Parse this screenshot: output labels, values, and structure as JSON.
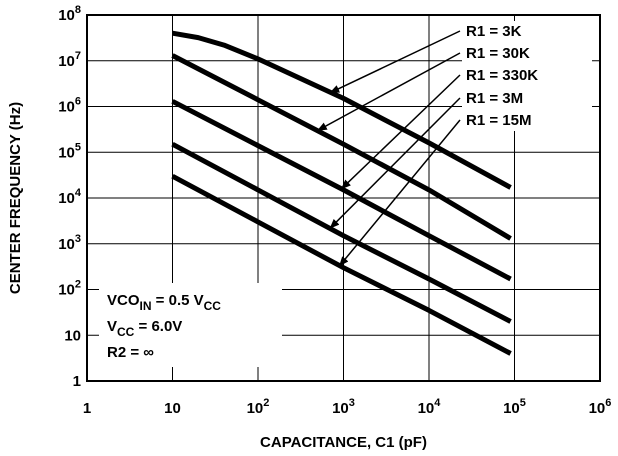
{
  "chart_data": {
    "type": "line",
    "xlabel": "CAPACITANCE, C1 (pF)",
    "ylabel": "CENTER FREQUENCY (Hz)",
    "x_scale": "log",
    "y_scale": "log",
    "xlim": [
      1,
      1000000
    ],
    "ylim": [
      1,
      100000000
    ],
    "grid": true,
    "x_ticks": [
      {
        "value": 1,
        "label": "1"
      },
      {
        "value": 10,
        "label": "10"
      },
      {
        "value": 100,
        "base": "10",
        "exp": "2"
      },
      {
        "value": 1000,
        "base": "10",
        "exp": "3"
      },
      {
        "value": 10000,
        "base": "10",
        "exp": "4"
      },
      {
        "value": 100000,
        "base": "10",
        "exp": "5"
      },
      {
        "value": 1000000,
        "base": "10",
        "exp": "6"
      }
    ],
    "y_ticks": [
      {
        "value": 1,
        "label": "1"
      },
      {
        "value": 10,
        "label": "10"
      },
      {
        "value": 100,
        "base": "10",
        "exp": "2"
      },
      {
        "value": 1000,
        "base": "10",
        "exp": "3"
      },
      {
        "value": 10000,
        "base": "10",
        "exp": "4"
      },
      {
        "value": 100000,
        "base": "10",
        "exp": "5"
      },
      {
        "value": 1000000,
        "base": "10",
        "exp": "6"
      },
      {
        "value": 10000000,
        "base": "10",
        "exp": "7"
      },
      {
        "value": 100000000,
        "base": "10",
        "exp": "8"
      }
    ],
    "series": [
      {
        "name": "R1 = 3K",
        "points": [
          [
            10,
            40000000
          ],
          [
            20,
            32000000
          ],
          [
            40,
            22000000
          ],
          [
            100,
            11000000
          ],
          [
            1000,
            1500000
          ],
          [
            10000,
            160000
          ],
          [
            90000,
            17000
          ]
        ]
      },
      {
        "name": "R1 = 30K",
        "points": [
          [
            10,
            13000000
          ],
          [
            100,
            1400000
          ],
          [
            1000,
            150000
          ],
          [
            10000,
            15000
          ],
          [
            90000,
            1300
          ]
        ]
      },
      {
        "name": "R1 = 330K",
        "points": [
          [
            10,
            1300000
          ],
          [
            100,
            140000
          ],
          [
            1000,
            15000
          ],
          [
            10000,
            1500
          ],
          [
            90000,
            170
          ]
        ]
      },
      {
        "name": "R1 = 3M",
        "points": [
          [
            10,
            150000
          ],
          [
            100,
            15000
          ],
          [
            1000,
            1500
          ],
          [
            10000,
            170
          ],
          [
            90000,
            20
          ]
        ]
      },
      {
        "name": "R1 = 15M",
        "points": [
          [
            10,
            30000
          ],
          [
            100,
            3000
          ],
          [
            1000,
            300
          ],
          [
            10000,
            35
          ],
          [
            90000,
            4
          ]
        ]
      }
    ],
    "legend_labels": [
      "R1 = 3K",
      "R1 = 30K",
      "R1 = 330K",
      "R1 = 3M",
      "R1 = 15M"
    ],
    "pointer_targets": [
      {
        "series": "R1 = 3K",
        "x": 700,
        "y": 2000000
      },
      {
        "series": "R1 = 30K",
        "x": 500,
        "y": 300000
      },
      {
        "series": "R1 = 330K",
        "x": 950,
        "y": 16000
      },
      {
        "series": "R1 = 3M",
        "x": 700,
        "y": 2200
      },
      {
        "series": "R1 = 15M",
        "x": 900,
        "y": 330
      }
    ],
    "conditions": [
      {
        "main": "VCO",
        "sub": "IN",
        "rest": " = 0.5 V",
        "sub2": "CC"
      },
      {
        "main": "V",
        "sub": "CC",
        "rest": " = 6.0V",
        "sub2": ""
      },
      {
        "main": "R2 = ∞",
        "sub": "",
        "rest": "",
        "sub2": ""
      }
    ]
  }
}
